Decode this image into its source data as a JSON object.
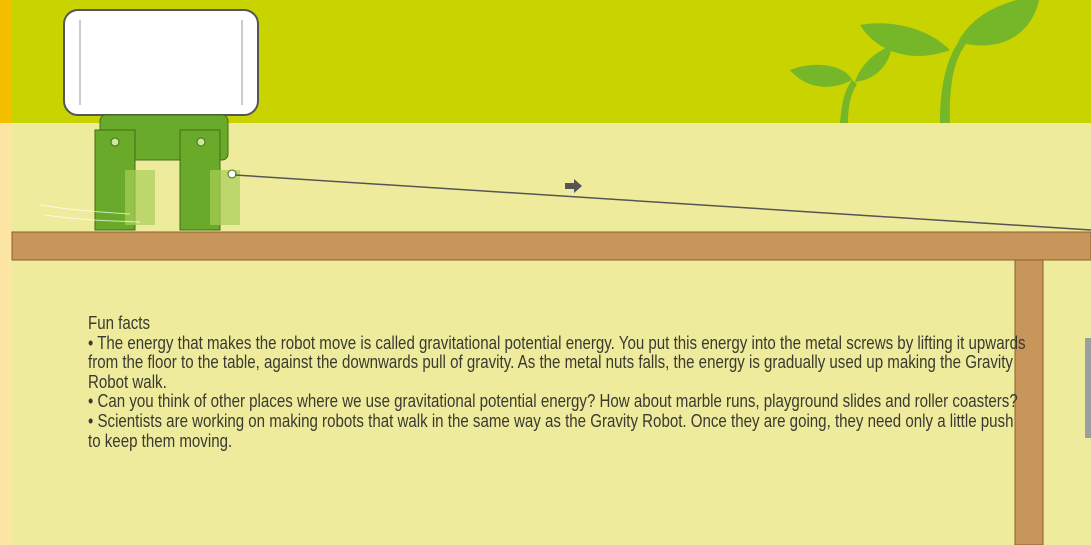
{
  "fun_facts": {
    "heading": "Fun facts",
    "items": [
      "• The energy that makes the robot move is called gravitational potential energy. You put this energy into the metal screws by lifting it upwards from the floor to the table, against the downwards pull of gravity. As the metal nuts falls, the energy is gradually used up making the Gravity Robot walk.",
      "• Can you think of other places where we use gravitational potential energy? How about marble runs, playground slides and roller coasters?",
      "• Scientists are working on making robots that walk in the same way as the Gravity Robot. Once they are going, they need only a little push to keep them moving."
    ]
  }
}
